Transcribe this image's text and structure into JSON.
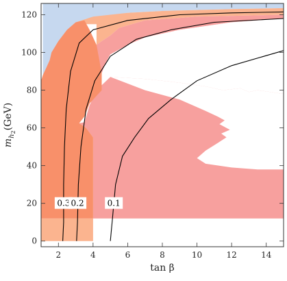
{
  "chart_data": {
    "type": "contour",
    "title": "",
    "xlabel": "tan β",
    "ylabel": "m_{h2}(GeV)",
    "xlim": [
      1,
      15
    ],
    "ylim": [
      -3,
      126
    ],
    "xticks": [
      2,
      4,
      6,
      8,
      10,
      12,
      14
    ],
    "yticks": [
      0,
      20,
      40,
      60,
      80,
      100,
      120
    ],
    "grid": false,
    "colors": {
      "blue": "#c6d8ef",
      "light_orange": "#fbb48f",
      "orange": "#f8906a",
      "dark_orange": "#f5835c",
      "red": "#f7a09e",
      "line": "#000000"
    },
    "regions": [
      {
        "color_key": "blue",
        "points": [
          [
            1.1,
            88
          ],
          [
            1.3,
            92
          ],
          [
            1.5,
            96
          ],
          [
            2,
            104
          ],
          [
            2.5,
            110
          ],
          [
            3,
            114
          ],
          [
            4,
            118
          ],
          [
            6,
            121
          ],
          [
            8,
            122
          ],
          [
            12,
            123
          ],
          [
            15,
            123.5
          ],
          [
            15,
            126
          ],
          [
            1.1,
            126
          ]
        ]
      },
      {
        "color_key": "light_orange",
        "points": [
          [
            1.6,
            100
          ],
          [
            2,
            106
          ],
          [
            2.5,
            112
          ],
          [
            3,
            116
          ],
          [
            4,
            119
          ],
          [
            6,
            121
          ],
          [
            8,
            122
          ],
          [
            12,
            123
          ],
          [
            15,
            123.5
          ],
          [
            15,
            120
          ],
          [
            10,
            119
          ],
          [
            7,
            117
          ],
          [
            5.5,
            113
          ],
          [
            5,
            109
          ],
          [
            4.5,
            106
          ],
          [
            4.2,
            104
          ],
          [
            4.2,
            115
          ],
          [
            3.5,
            115
          ],
          [
            3,
            112
          ],
          [
            2.5,
            105
          ],
          [
            2,
            100
          ]
        ]
      },
      {
        "color_key": "light_orange",
        "points": [
          [
            1,
            0
          ],
          [
            4,
            0
          ],
          [
            4,
            12
          ],
          [
            1,
            12
          ]
        ]
      },
      {
        "color_key": "red",
        "points": [
          [
            4.2,
            104
          ],
          [
            4.5,
            106
          ],
          [
            5,
            109
          ],
          [
            5.5,
            113
          ],
          [
            7,
            117
          ],
          [
            10,
            119
          ],
          [
            15,
            120
          ],
          [
            15,
            118
          ],
          [
            12,
            116
          ],
          [
            9,
            112
          ],
          [
            7,
            108
          ],
          [
            6,
            104
          ],
          [
            5,
            99
          ],
          [
            4.7,
            94
          ],
          [
            4.5,
            89
          ],
          [
            4.2,
            80
          ],
          [
            3.8,
            73
          ],
          [
            3.5,
            66
          ],
          [
            3,
            64
          ],
          [
            2.5,
            62
          ],
          [
            2,
            60
          ],
          [
            1.6,
            55
          ],
          [
            1.5,
            88
          ],
          [
            1.5,
            96
          ],
          [
            1.8,
            100
          ]
        ]
      },
      {
        "color_key": "red",
        "points": [
          [
            4.2,
            80
          ],
          [
            5,
            87
          ],
          [
            7,
            86
          ],
          [
            9,
            84
          ],
          [
            10.5,
            82
          ],
          [
            11.5,
            80
          ],
          [
            12.5,
            81
          ],
          [
            13,
            79
          ],
          [
            13.5,
            80
          ],
          [
            15,
            78
          ],
          [
            15,
            12
          ],
          [
            4,
            12
          ],
          [
            4,
            55
          ],
          [
            3.6,
            60
          ],
          [
            3.2,
            62.5
          ],
          [
            3.5,
            63
          ],
          [
            3.8,
            72
          ]
        ]
      },
      {
        "color_key": "orange",
        "points": [
          [
            1,
            12
          ],
          [
            1,
            85
          ],
          [
            1.1,
            88
          ],
          [
            1.3,
            92
          ],
          [
            1.5,
            96
          ],
          [
            1.6,
            100
          ],
          [
            2,
            106
          ],
          [
            2.5,
            112
          ],
          [
            3,
            116
          ],
          [
            3.5,
            117
          ],
          [
            3.8,
            112
          ],
          [
            4.2,
            104
          ],
          [
            4.5,
            89
          ],
          [
            4.5,
            80
          ],
          [
            3.8,
            73
          ],
          [
            3.5,
            66
          ],
          [
            3.2,
            62.5
          ],
          [
            3.6,
            60
          ],
          [
            4,
            55
          ],
          [
            4,
            12
          ]
        ]
      }
    ],
    "white_holes": [
      {
        "points": [
          [
            5.5,
            99
          ],
          [
            6,
            104
          ],
          [
            7,
            108
          ],
          [
            9,
            112
          ],
          [
            12,
            116
          ],
          [
            15,
            118
          ],
          [
            15,
            98
          ],
          [
            11.5,
            99
          ],
          [
            10,
            100
          ],
          [
            8,
            100
          ],
          [
            6.5,
            99
          ]
        ]
      },
      {
        "points": [
          [
            5,
            87
          ],
          [
            7,
            86
          ],
          [
            9,
            84
          ],
          [
            10.5,
            82
          ],
          [
            11.5,
            80
          ],
          [
            12.5,
            81
          ],
          [
            13,
            79
          ],
          [
            13.5,
            80
          ],
          [
            15,
            78
          ],
          [
            15,
            38
          ],
          [
            13.5,
            38
          ],
          [
            12,
            39
          ],
          [
            10.5,
            41
          ],
          [
            10,
            44
          ],
          [
            10.5,
            48
          ],
          [
            11.2,
            52
          ],
          [
            11.7,
            55
          ],
          [
            11.4,
            57
          ],
          [
            11.9,
            59
          ],
          [
            11.3,
            62
          ],
          [
            11.6,
            64
          ],
          [
            11.2,
            66
          ],
          [
            10.5,
            69
          ],
          [
            9,
            75
          ],
          [
            7,
            80
          ]
        ]
      }
    ],
    "contours": [
      {
        "label": "0.3",
        "label_at": [
          2.3,
          20
        ],
        "points": [
          [
            2.25,
            0
          ],
          [
            2.3,
            10
          ],
          [
            2.3,
            30
          ],
          [
            2.35,
            50
          ],
          [
            2.45,
            70
          ],
          [
            2.7,
            90
          ],
          [
            3.2,
            105
          ],
          [
            4,
            112
          ],
          [
            6,
            117
          ],
          [
            9,
            120
          ],
          [
            12,
            121
          ],
          [
            15,
            121.5
          ]
        ]
      },
      {
        "label": "0.2",
        "label_at": [
          3.1,
          20
        ],
        "points": [
          [
            3.05,
            0
          ],
          [
            3.1,
            10
          ],
          [
            3.15,
            30
          ],
          [
            3.3,
            50
          ],
          [
            3.6,
            70
          ],
          [
            4.1,
            85
          ],
          [
            5,
            98
          ],
          [
            6.5,
            107
          ],
          [
            8.5,
            112
          ],
          [
            11,
            116
          ],
          [
            15,
            118
          ]
        ]
      },
      {
        "label": "0.1",
        "label_at": [
          5.2,
          20
        ],
        "points": [
          [
            5,
            0
          ],
          [
            5.1,
            10
          ],
          [
            5.3,
            30
          ],
          [
            5.7,
            45
          ],
          [
            6.4,
            55
          ],
          [
            7.2,
            65
          ],
          [
            8.5,
            75
          ],
          [
            10,
            85
          ],
          [
            12,
            93
          ],
          [
            15,
            101
          ]
        ]
      }
    ]
  }
}
